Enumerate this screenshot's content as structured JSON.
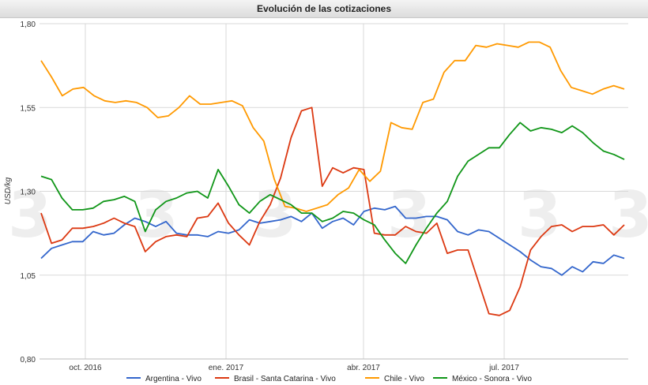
{
  "chart_data": {
    "type": "line",
    "title": "Evolución de las cotizaciones",
    "xlabel": "",
    "ylabel": "USD/kg",
    "ylim": [
      0.8,
      1.8
    ],
    "y_ticks": [
      "0,80",
      "1,05",
      "1,30",
      "1,55",
      "1,80"
    ],
    "x_ticks": [
      "oct. 2016",
      "ene. 2017",
      "abr. 2017",
      "jul. 2017"
    ],
    "grid": true,
    "legend_position": "bottom",
    "series": [
      {
        "name": "Argentina - Vivo",
        "color": "#3366cc",
        "values": [
          1.1,
          1.13,
          1.14,
          1.15,
          1.15,
          1.18,
          1.17,
          1.175,
          1.2,
          1.22,
          1.21,
          1.195,
          1.21,
          1.175,
          1.17,
          1.17,
          1.165,
          1.18,
          1.175,
          1.185,
          1.215,
          1.205,
          1.21,
          1.215,
          1.225,
          1.21,
          1.235,
          1.19,
          1.21,
          1.22,
          1.2,
          1.24,
          1.25,
          1.245,
          1.255,
          1.22,
          1.22,
          1.225,
          1.225,
          1.215,
          1.18,
          1.17,
          1.185,
          1.18,
          1.16,
          1.14,
          1.12,
          1.095,
          1.075,
          1.07,
          1.05,
          1.075,
          1.06,
          1.09,
          1.085,
          1.11,
          1.1
        ]
      },
      {
        "name": "Brasil - Santa Catarina - Vivo",
        "color": "#dc3912",
        "values": [
          1.235,
          1.145,
          1.155,
          1.19,
          1.19,
          1.195,
          1.205,
          1.22,
          1.205,
          1.195,
          1.12,
          1.15,
          1.165,
          1.17,
          1.165,
          1.22,
          1.225,
          1.265,
          1.205,
          1.17,
          1.14,
          1.21,
          1.26,
          1.34,
          1.46,
          1.54,
          1.55,
          1.315,
          1.37,
          1.355,
          1.37,
          1.365,
          1.175,
          1.17,
          1.17,
          1.195,
          1.18,
          1.175,
          1.205,
          1.115,
          1.125,
          1.125,
          1.03,
          0.935,
          0.93,
          0.945,
          1.015,
          1.125,
          1.165,
          1.195,
          1.2,
          1.18,
          1.195,
          1.195,
          1.2,
          1.17,
          1.2
        ]
      },
      {
        "name": "Chile - Vivo",
        "color": "#ff9900",
        "values": [
          1.69,
          1.64,
          1.585,
          1.605,
          1.61,
          1.585,
          1.57,
          1.565,
          1.57,
          1.565,
          1.55,
          1.52,
          1.525,
          1.55,
          1.585,
          1.56,
          1.56,
          1.565,
          1.57,
          1.555,
          1.49,
          1.45,
          1.335,
          1.255,
          1.25,
          1.24,
          1.25,
          1.26,
          1.29,
          1.31,
          1.365,
          1.33,
          1.36,
          1.505,
          1.49,
          1.485,
          1.565,
          1.575,
          1.655,
          1.69,
          1.69,
          1.735,
          1.73,
          1.74,
          1.735,
          1.73,
          1.745,
          1.745,
          1.73,
          1.66,
          1.61,
          1.6,
          1.59,
          1.605,
          1.615,
          1.605
        ]
      },
      {
        "name": "México - Sonora - Vivo",
        "color": "#109618",
        "values": [
          1.345,
          1.335,
          1.28,
          1.245,
          1.245,
          1.25,
          1.27,
          1.275,
          1.285,
          1.27,
          1.18,
          1.245,
          1.27,
          1.28,
          1.295,
          1.3,
          1.28,
          1.365,
          1.315,
          1.26,
          1.235,
          1.27,
          1.29,
          1.275,
          1.26,
          1.235,
          1.235,
          1.21,
          1.22,
          1.24,
          1.235,
          1.215,
          1.2,
          1.155,
          1.115,
          1.085,
          1.14,
          1.19,
          1.235,
          1.27,
          1.345,
          1.39,
          1.41,
          1.43,
          1.43,
          1.47,
          1.505,
          1.48,
          1.49,
          1.485,
          1.475,
          1.495,
          1.475,
          1.445,
          1.42,
          1.41,
          1.395
        ]
      }
    ]
  }
}
